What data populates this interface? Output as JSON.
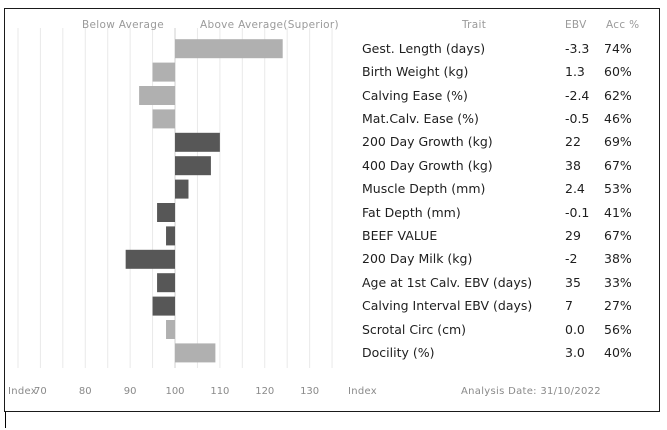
{
  "header": {
    "below_average": "Below Average",
    "above_average": "Above Average(Superior)",
    "trait": "Trait",
    "ebv": "EBV",
    "acc": "Acc %"
  },
  "footer": {
    "index_left": "Index",
    "index_right": "Index",
    "analysis_date": "Analysis Date: 31/10/2022"
  },
  "chart_data": {
    "type": "bar",
    "orientation": "horizontal",
    "baseline": 100,
    "xlim": [
      63,
      139
    ],
    "x_ticks": [
      70,
      80,
      90,
      100,
      110,
      120,
      130
    ],
    "grid": true,
    "colors": {
      "light": "#b0b0b0",
      "dark": "#575757"
    },
    "rows": [
      {
        "trait": "Gest. Length (days)",
        "ebv": "-3.3",
        "acc": "74%",
        "index": 124,
        "shade": "light"
      },
      {
        "trait": "Birth Weight (kg)",
        "ebv": "1.3",
        "acc": "60%",
        "index": 95,
        "shade": "light"
      },
      {
        "trait": "Calving Ease (%)",
        "ebv": "-2.4",
        "acc": "62%",
        "index": 92,
        "shade": "light"
      },
      {
        "trait": "Mat.Calv. Ease (%)",
        "ebv": "-0.5",
        "acc": "46%",
        "index": 95,
        "shade": "light"
      },
      {
        "trait": "200 Day Growth (kg)",
        "ebv": "22",
        "acc": "69%",
        "index": 110,
        "shade": "dark"
      },
      {
        "trait": "400 Day Growth (kg)",
        "ebv": "38",
        "acc": "67%",
        "index": 108,
        "shade": "dark"
      },
      {
        "trait": "Muscle Depth (mm)",
        "ebv": "2.4",
        "acc": "53%",
        "index": 103,
        "shade": "dark"
      },
      {
        "trait": "Fat Depth (mm)",
        "ebv": "-0.1",
        "acc": "41%",
        "index": 96,
        "shade": "dark"
      },
      {
        "trait": "BEEF VALUE",
        "ebv": "29",
        "acc": "67%",
        "index": 98,
        "shade": "dark"
      },
      {
        "trait": "200 Day Milk (kg)",
        "ebv": "-2",
        "acc": "38%",
        "index": 89,
        "shade": "dark"
      },
      {
        "trait": "Age at 1st Calv. EBV (days)",
        "ebv": "35",
        "acc": "33%",
        "index": 96,
        "shade": "dark"
      },
      {
        "trait": "Calving Interval EBV (days)",
        "ebv": "7",
        "acc": "27%",
        "index": 95,
        "shade": "dark"
      },
      {
        "trait": "Scrotal Circ (cm)",
        "ebv": "0.0",
        "acc": "56%",
        "index": 98,
        "shade": "light"
      },
      {
        "trait": "Docility (%)",
        "ebv": "3.0",
        "acc": "40%",
        "index": 109,
        "shade": "light"
      }
    ]
  }
}
